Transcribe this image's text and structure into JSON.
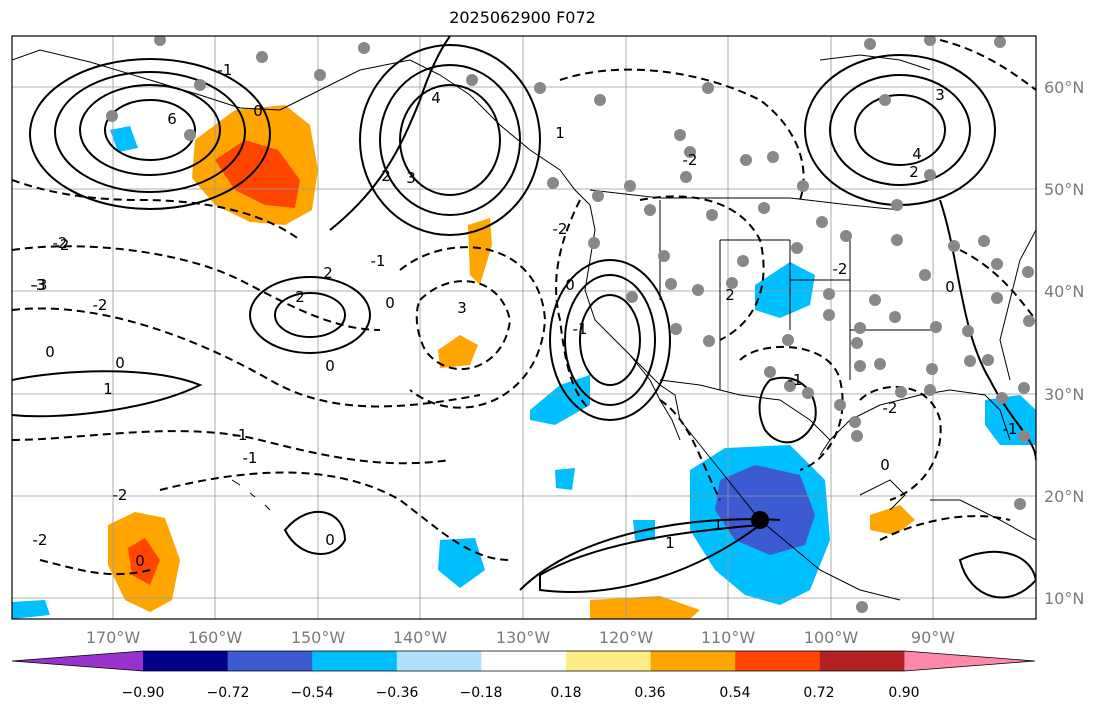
{
  "title": "2025062900 F072",
  "map": {
    "projection": "plate-carree",
    "lon_range": [
      -182,
      -78
    ],
    "lat_range": [
      8,
      65
    ],
    "gridlines": true,
    "lon_ticks": [
      {
        "label": "170°W"
      },
      {
        "label": "160°W"
      },
      {
        "label": "150°W"
      },
      {
        "label": "140°W"
      },
      {
        "label": "130°W"
      },
      {
        "label": "120°W"
      },
      {
        "label": "110°W"
      },
      {
        "label": "100°W"
      },
      {
        "label": "90°W"
      }
    ],
    "lat_ticks": [
      {
        "label": "60°N"
      },
      {
        "label": "50°N"
      },
      {
        "label": "40°N"
      },
      {
        "label": "30°N"
      },
      {
        "label": "20°N"
      },
      {
        "label": "10°N"
      }
    ],
    "contour_labels": [
      "-2",
      "-3",
      "-2",
      "0",
      "1",
      "0",
      "2",
      "2",
      "0",
      "-1",
      "-1",
      "0",
      "-1",
      "3",
      "2",
      "4",
      "3",
      "-2",
      "1",
      "-2",
      "0",
      "-1",
      "2",
      "-1",
      "0",
      "-3",
      "-2",
      "0",
      "1",
      "1",
      "-2",
      "0",
      "3",
      "4",
      "2",
      "-1",
      "0",
      "-2",
      "6",
      "-2",
      "-1",
      "0",
      "-2"
    ],
    "marker_colors": {
      "gray_dot": "#888888",
      "black_dot": "#000000"
    }
  },
  "colorbar": {
    "colors": [
      "#9932cc",
      "#00008b",
      "#3c5ad2",
      "#00bfff",
      "#aee2ff",
      "#ffffff",
      "#ffee88",
      "#ffa500",
      "#ff4500",
      "#b22222",
      "#ff88aa"
    ],
    "labels": [
      "−0.90",
      "−0.72",
      "−0.54",
      "−0.36",
      "−0.18",
      "0.18",
      "0.36",
      "0.54",
      "0.72",
      "0.90"
    ]
  }
}
